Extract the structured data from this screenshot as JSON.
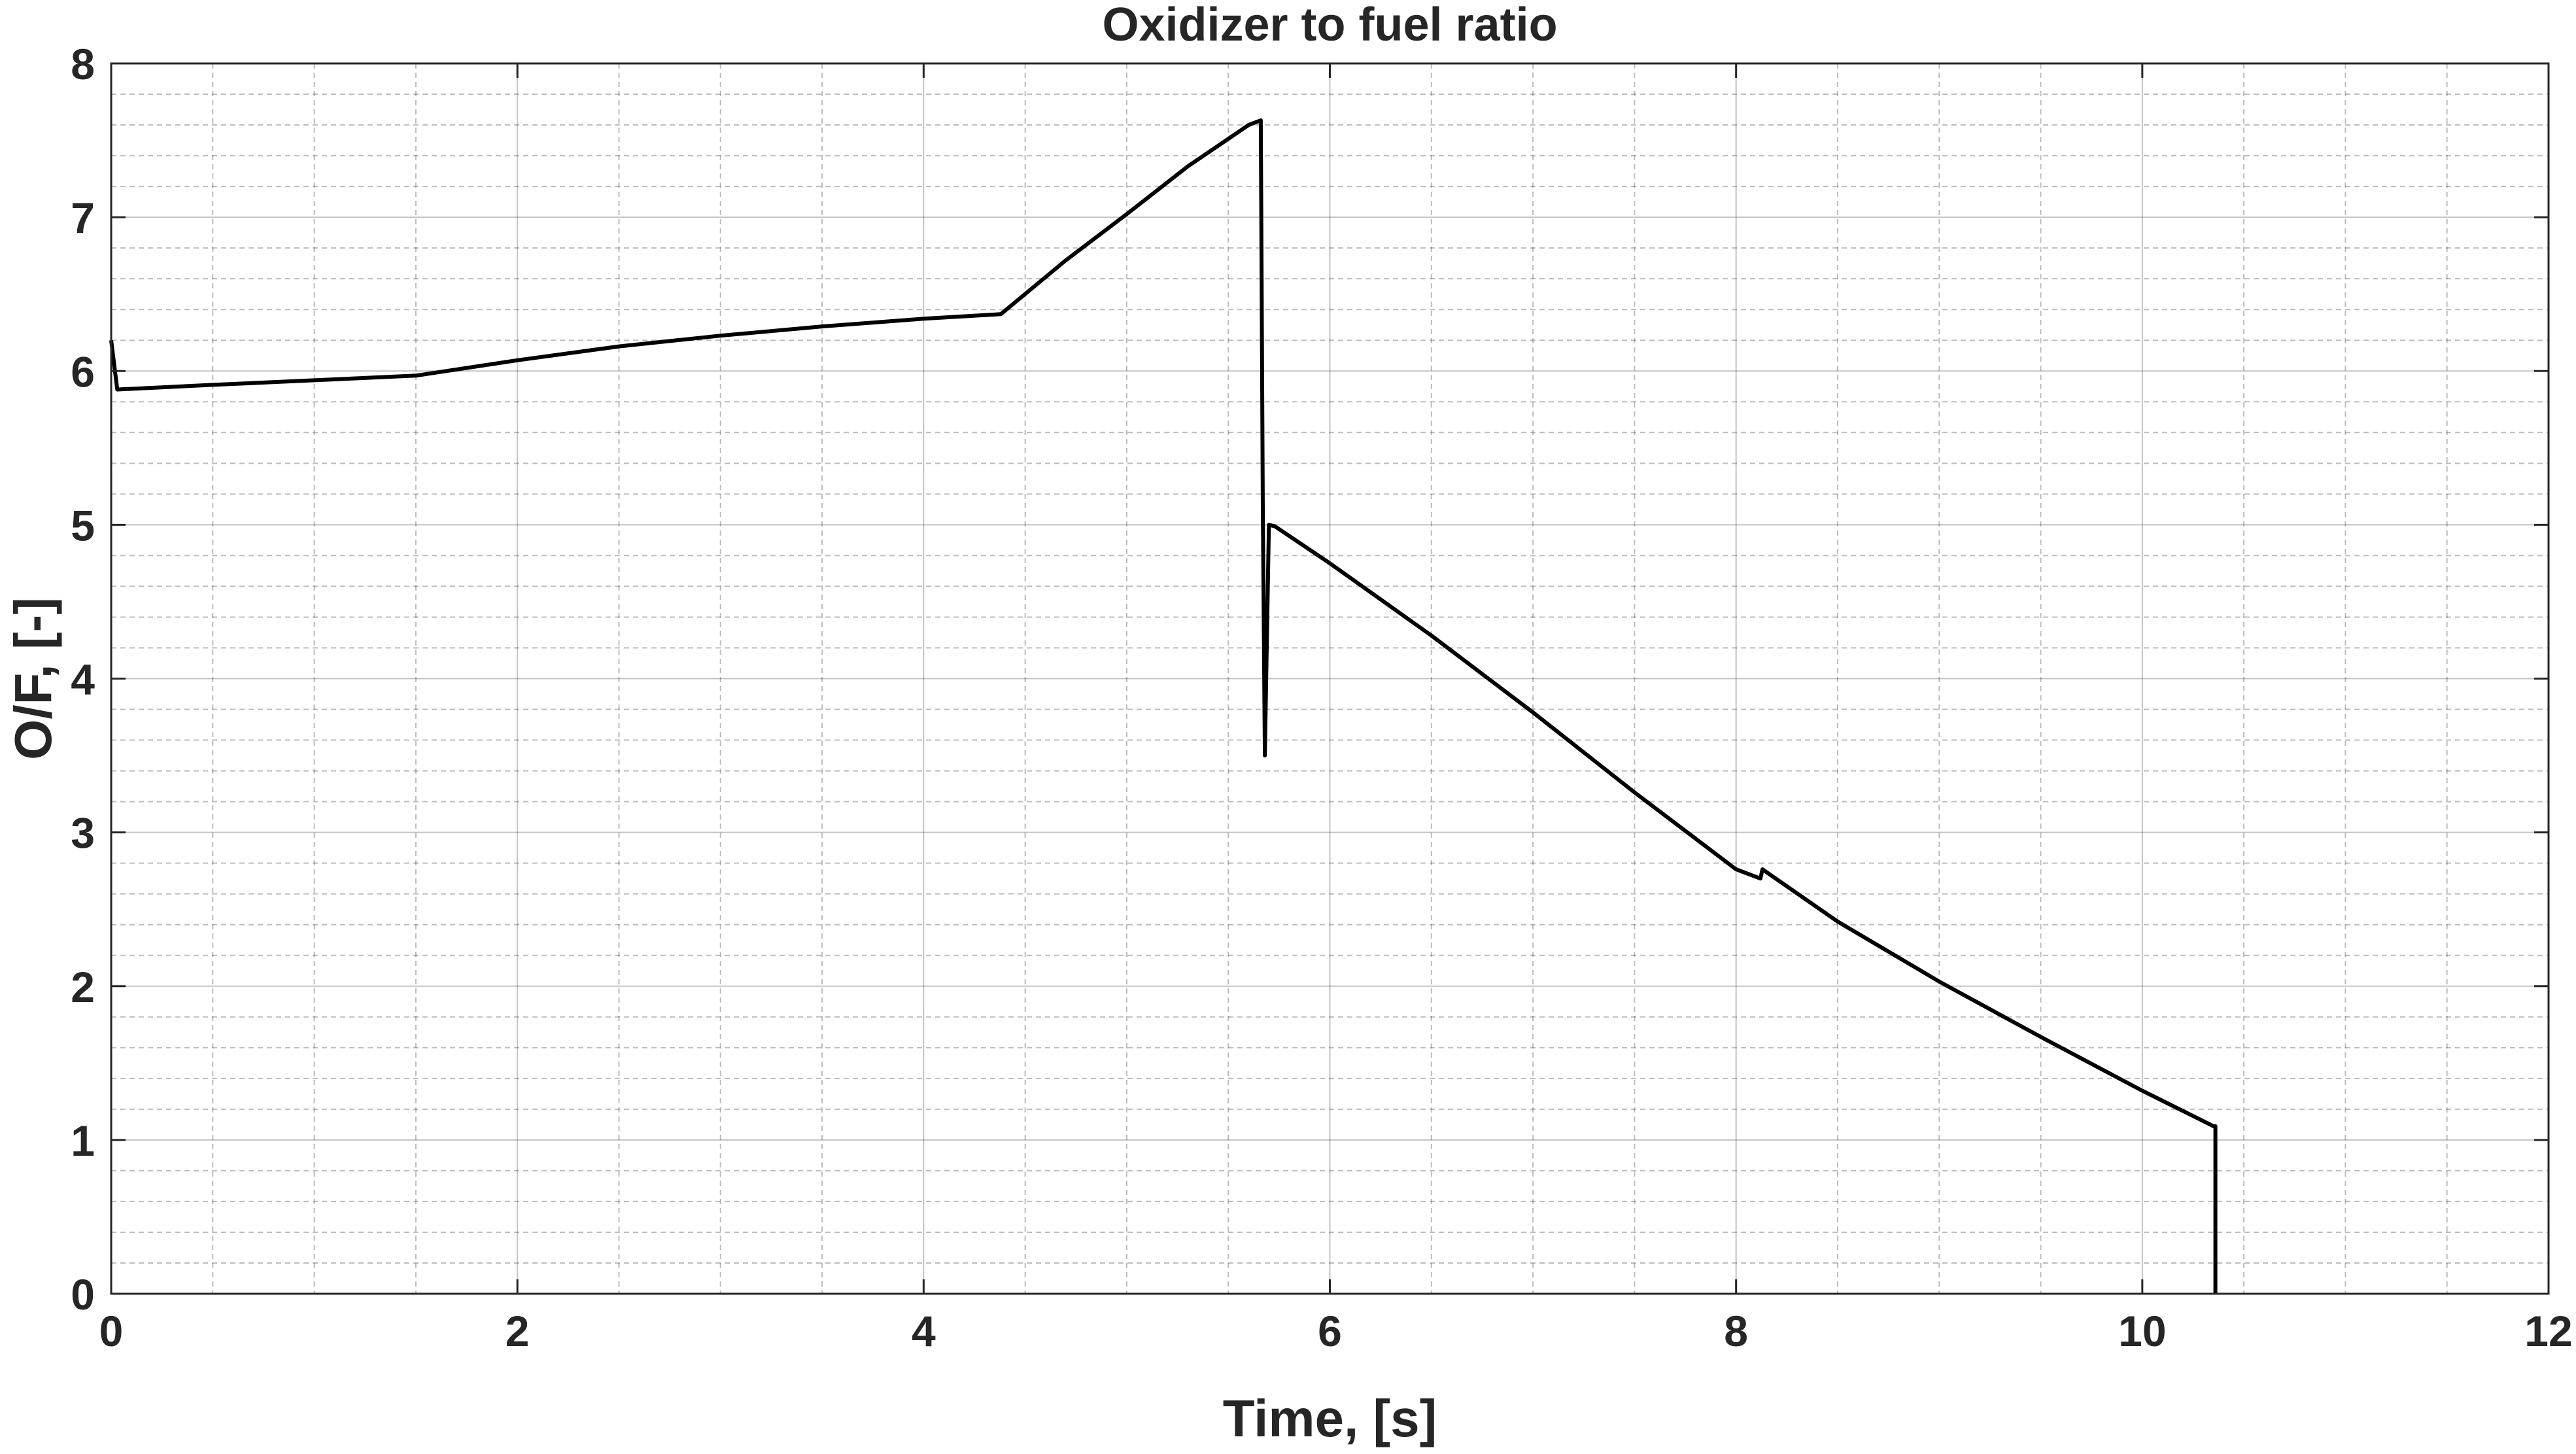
{
  "chart_data": {
    "type": "line",
    "title": "Oxidizer to fuel ratio",
    "xlabel": "Time, [s]",
    "ylabel": "O/F, [-]",
    "xlim": [
      0,
      12
    ],
    "ylim": [
      0,
      8
    ],
    "x_ticks": [
      0,
      2,
      4,
      6,
      8,
      10,
      12
    ],
    "y_ticks": [
      0,
      1,
      2,
      3,
      4,
      5,
      6,
      7,
      8
    ],
    "x_tick_labels": [
      "0",
      "2",
      "4",
      "6",
      "8",
      "10",
      "12"
    ],
    "y_tick_labels": [
      "0",
      "1",
      "2",
      "3",
      "4",
      "5",
      "6",
      "7",
      "8"
    ],
    "x_minor_step": 0.5,
    "y_minor_step": 0.2,
    "grid": true,
    "minor_grid": true,
    "legend": false,
    "colors": {
      "line": "#000000",
      "axes": "#262626",
      "background": "#ffffff"
    },
    "series": [
      {
        "x": [
          0.0,
          0.03,
          0.5,
          1.0,
          1.5,
          2.0,
          2.5,
          3.0,
          3.5,
          4.0,
          4.38,
          4.7,
          5.0,
          5.3,
          5.6,
          5.66,
          5.67,
          5.68,
          5.7,
          5.73,
          6.0,
          6.5,
          7.0,
          7.5,
          8.0,
          8.12,
          8.13,
          8.5,
          9.0,
          9.5,
          10.0,
          10.35,
          10.36,
          10.36
        ],
        "y": [
          6.2,
          5.88,
          5.91,
          5.94,
          5.97,
          6.07,
          6.16,
          6.23,
          6.29,
          6.34,
          6.37,
          6.72,
          7.02,
          7.33,
          7.6,
          7.63,
          5.1,
          3.5,
          5.0,
          4.99,
          4.75,
          4.28,
          3.78,
          3.26,
          2.76,
          2.7,
          2.76,
          2.42,
          2.03,
          1.67,
          1.32,
          1.09,
          1.09,
          0.0
        ]
      }
    ]
  }
}
